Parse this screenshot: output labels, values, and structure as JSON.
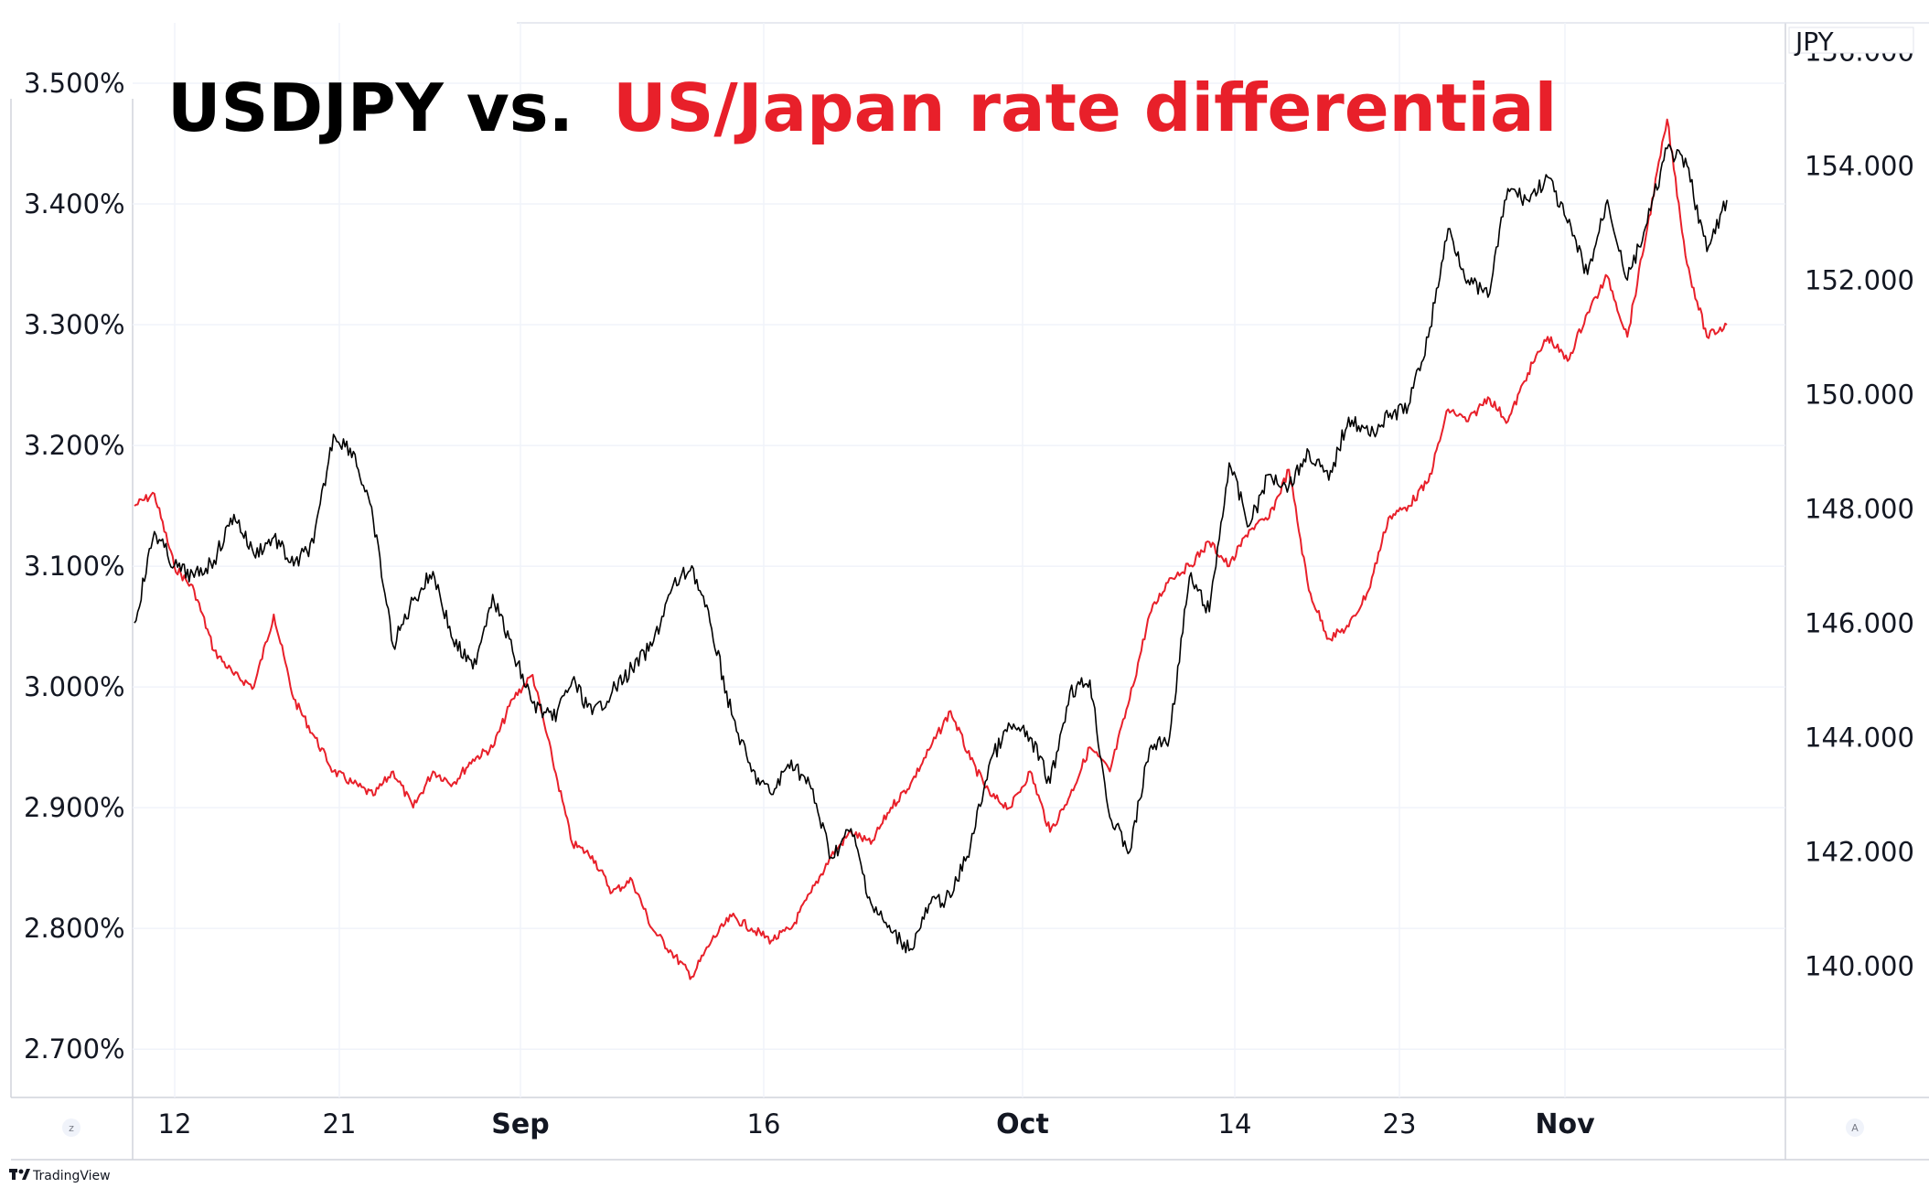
{
  "title": {
    "part1": "USDJPY vs.",
    "part2": "US/Japan rate differential",
    "part1_color": "#000000",
    "part2_color": "#e8202a"
  },
  "right_axis_unit": "JPY",
  "brand": "TradingView",
  "corner_buttons": {
    "left": "z",
    "right": "A"
  },
  "chart_data": {
    "type": "line",
    "x_ticks": [
      {
        "label": "12",
        "bold": false
      },
      {
        "label": "21",
        "bold": false
      },
      {
        "label": "Sep",
        "bold": true
      },
      {
        "label": "16",
        "bold": false
      },
      {
        "label": "Oct",
        "bold": true
      },
      {
        "label": "14",
        "bold": false
      },
      {
        "label": "23",
        "bold": false
      },
      {
        "label": "Nov",
        "bold": true
      }
    ],
    "left_axis": {
      "ticks": [
        "3.500%",
        "3.400%",
        "3.300%",
        "3.200%",
        "3.100%",
        "3.000%",
        "2.900%",
        "2.800%",
        "2.700%"
      ],
      "range": [
        2.66,
        3.55
      ]
    },
    "right_axis": {
      "ticks": [
        "156.000",
        "154.000",
        "152.000",
        "150.000",
        "148.000",
        "146.000",
        "144.000",
        "142.000",
        "140.000"
      ],
      "range": [
        137.7,
        156.5
      ]
    },
    "grid": true,
    "series": [
      {
        "axis": "right",
        "color": "#000000",
        "values": [
          146.0,
          147.6,
          147.0,
          146.8,
          147.1,
          147.9,
          147.2,
          147.5,
          147.0,
          147.4,
          149.3,
          149.0,
          147.8,
          145.6,
          146.4,
          146.9,
          145.7,
          145.2,
          146.5,
          145.5,
          144.6,
          144.3,
          145.0,
          144.4,
          144.8,
          145.2,
          145.6,
          146.6,
          147.0,
          145.9,
          144.4,
          143.4,
          143.0,
          143.6,
          143.1,
          141.9,
          142.4,
          141.1,
          140.6,
          140.3,
          141.1,
          141.2,
          142.1,
          143.6,
          144.2,
          144.0,
          143.2,
          144.8,
          145.0,
          142.6,
          142.0,
          143.8,
          144.0,
          146.8,
          146.2,
          148.8,
          147.7,
          148.6,
          148.4,
          149.0,
          148.5,
          149.6,
          149.3,
          149.6,
          149.8,
          151.0,
          152.9,
          152.0,
          151.7,
          153.6,
          153.4,
          153.8,
          153.0,
          152.1,
          153.4,
          152.0,
          153.0,
          154.3,
          154.0,
          152.5,
          153.4
        ]
      },
      {
        "axis": "left",
        "color": "#e8202a",
        "values": [
          3.15,
          3.16,
          3.1,
          3.08,
          3.03,
          3.01,
          3.0,
          3.06,
          2.99,
          2.96,
          2.93,
          2.92,
          2.91,
          2.93,
          2.9,
          2.93,
          2.92,
          2.94,
          2.95,
          2.99,
          3.01,
          2.94,
          2.87,
          2.86,
          2.83,
          2.84,
          2.8,
          2.78,
          2.76,
          2.79,
          2.81,
          2.8,
          2.79,
          2.8,
          2.83,
          2.86,
          2.88,
          2.87,
          2.9,
          2.92,
          2.95,
          2.98,
          2.94,
          2.91,
          2.9,
          2.93,
          2.88,
          2.91,
          2.95,
          2.93,
          2.99,
          3.06,
          3.09,
          3.1,
          3.12,
          3.1,
          3.13,
          3.14,
          3.18,
          3.08,
          3.04,
          3.05,
          3.08,
          3.14,
          3.15,
          3.17,
          3.23,
          3.22,
          3.24,
          3.22,
          3.26,
          3.29,
          3.27,
          3.31,
          3.34,
          3.29,
          3.38,
          3.47,
          3.35,
          3.29,
          3.3
        ]
      }
    ]
  }
}
